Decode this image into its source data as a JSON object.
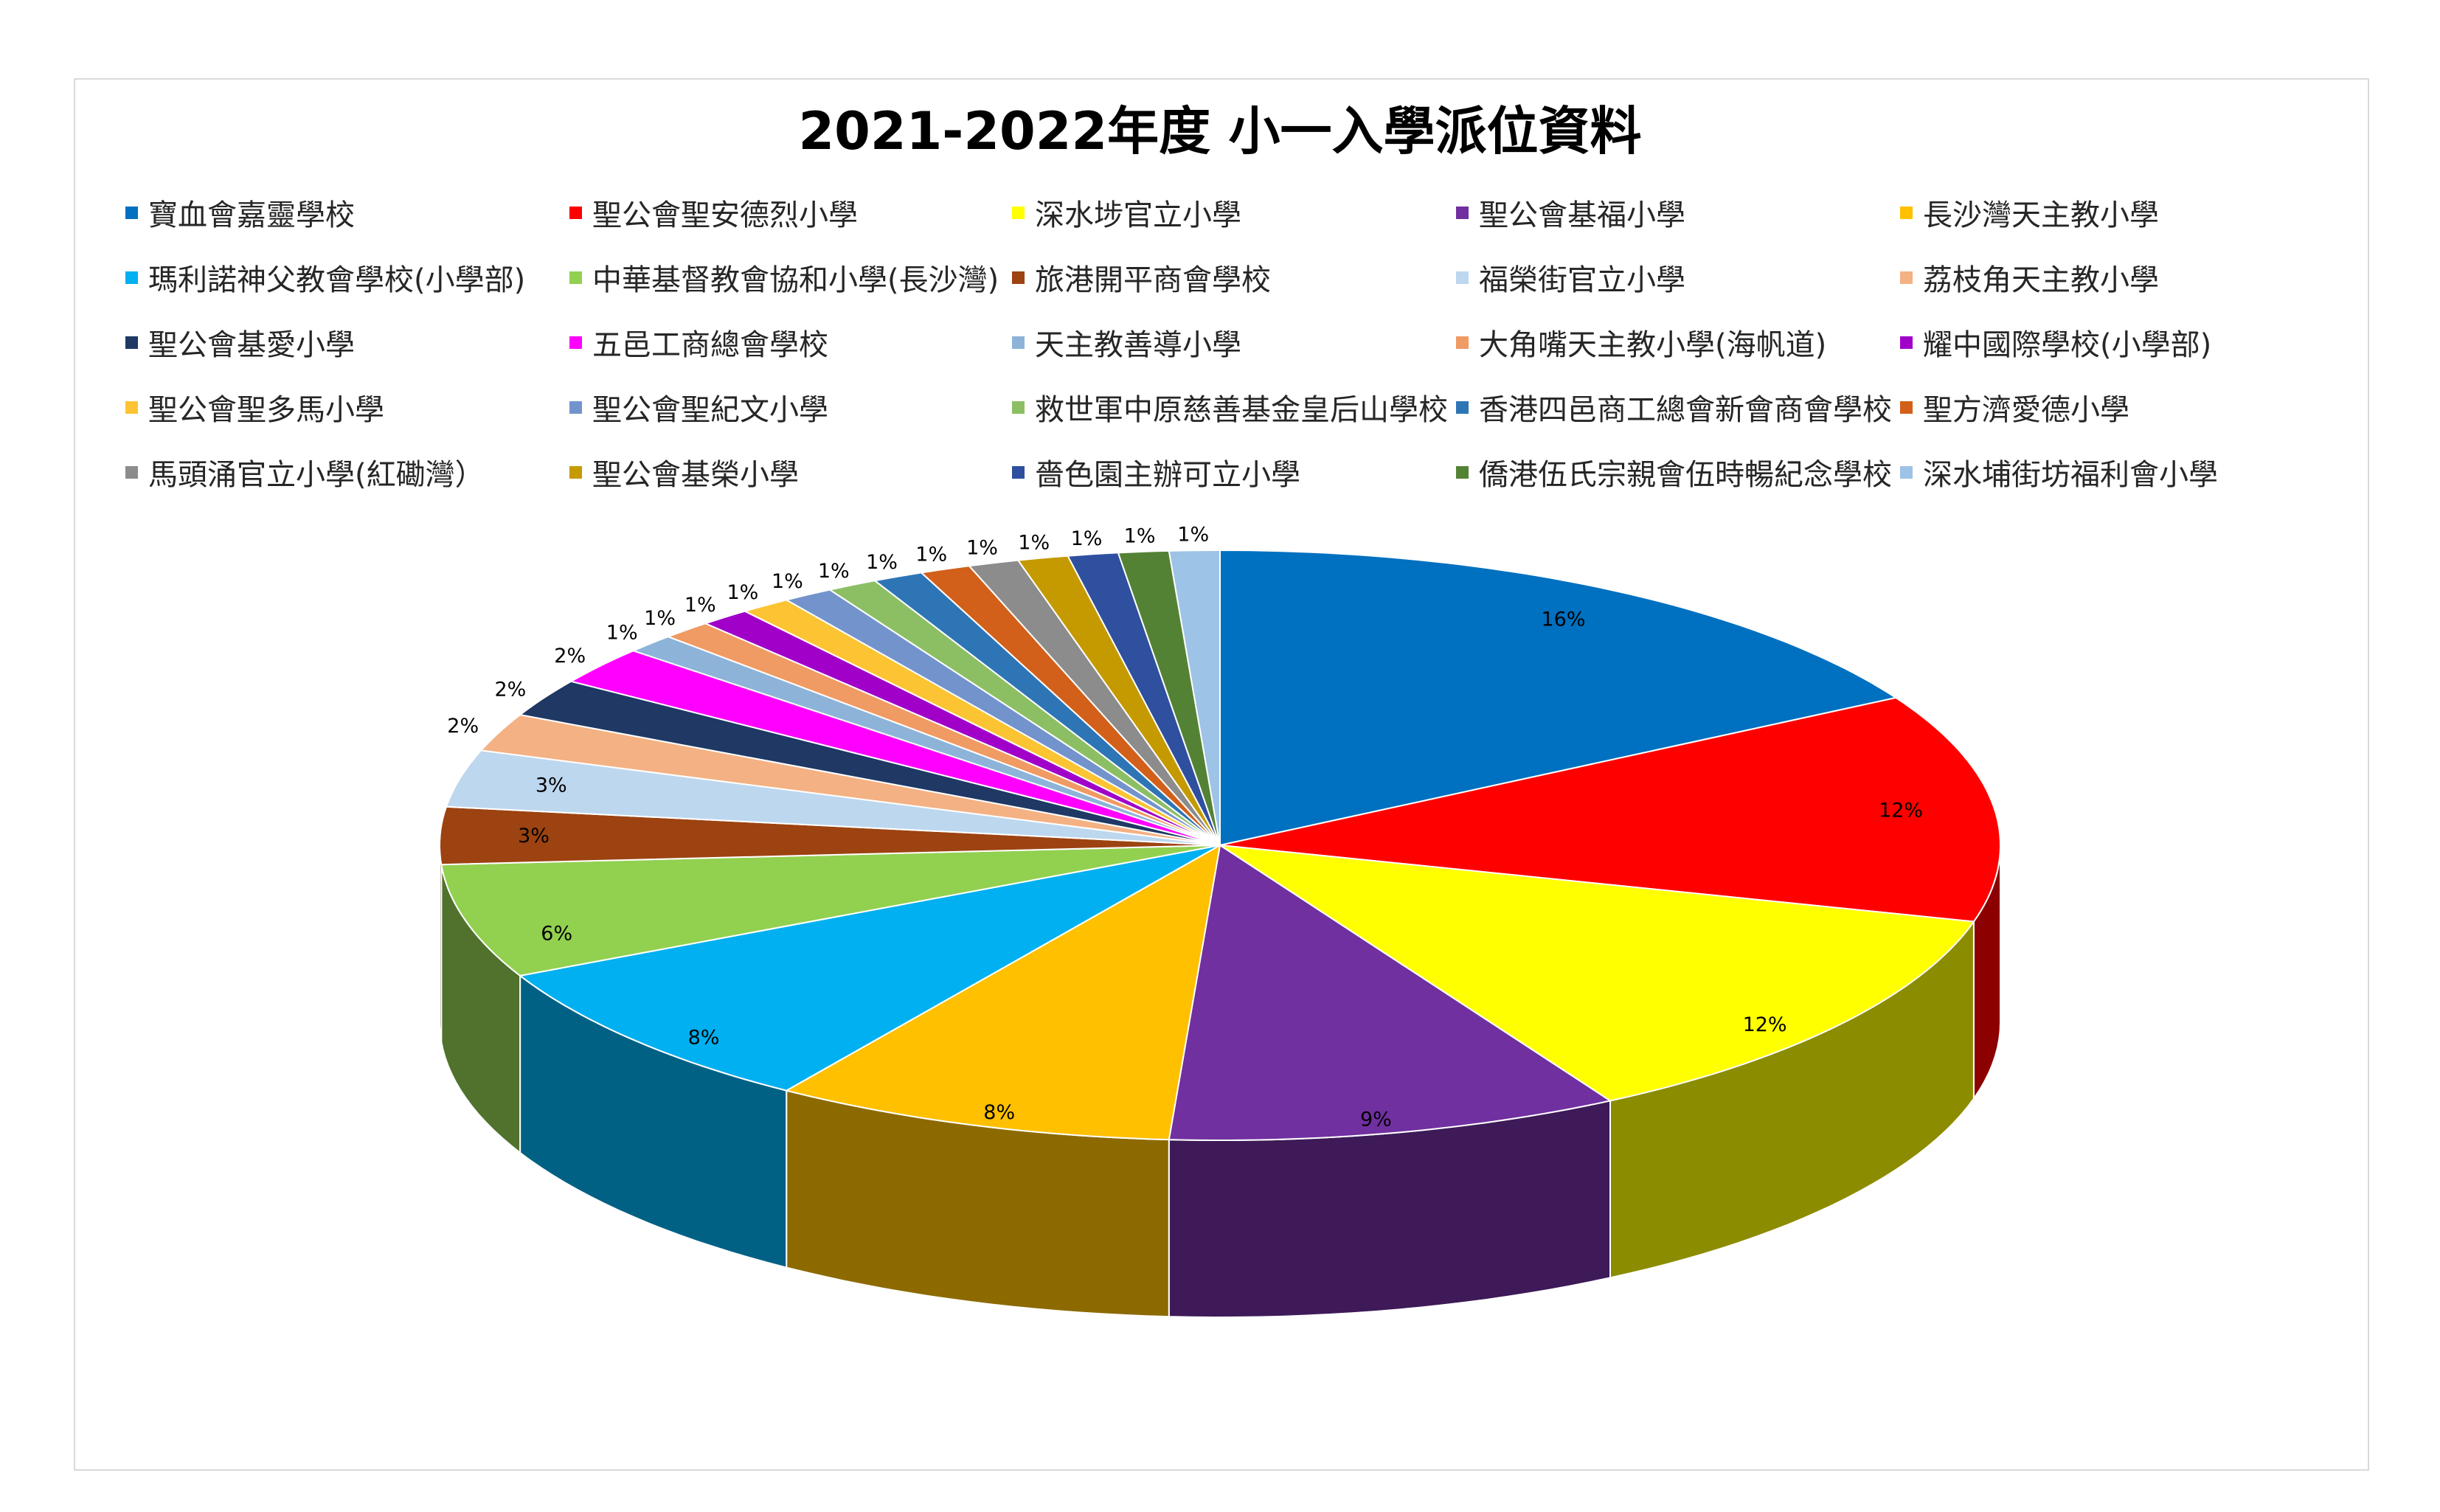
{
  "chart_data": {
    "type": "pie",
    "title": "2021-2022年度 小一入學派位資料",
    "style": "3d",
    "legend_position": "top",
    "slices": [
      {
        "name": "寶血會嘉靈學校",
        "value": 16,
        "label": "16%",
        "color": "#0070c0"
      },
      {
        "name": "聖公會聖安德烈小學",
        "value": 12,
        "label": "12%",
        "color": "#ff0000"
      },
      {
        "name": "深水埗官立小學",
        "value": 12,
        "label": "12%",
        "color": "#ffff00"
      },
      {
        "name": "聖公會基福小學",
        "value": 9,
        "label": "9%",
        "color": "#7030a0"
      },
      {
        "name": "長沙灣天主教小學",
        "value": 8,
        "label": "8%",
        "color": "#ffc000"
      },
      {
        "name": "瑪利諾神父教會學校(小學部)",
        "value": 8,
        "label": "8%",
        "color": "#00b0f0"
      },
      {
        "name": "中華基督教會協和小學(長沙灣)",
        "value": 6,
        "label": "6%",
        "color": "#92d050"
      },
      {
        "name": "旅港開平商會學校",
        "value": 3,
        "label": "3%",
        "color": "#9c4311"
      },
      {
        "name": "福榮街官立小學",
        "value": 3,
        "label": "3%",
        "color": "#bdd7ee"
      },
      {
        "name": "荔枝角天主教小學",
        "value": 2,
        "label": "2%",
        "color": "#f4b183"
      },
      {
        "name": "聖公會基愛小學",
        "value": 2,
        "label": "2%",
        "color": "#1f3864"
      },
      {
        "name": "五邑工商總會學校",
        "value": 2,
        "label": "2%",
        "color": "#ff00ff"
      },
      {
        "name": "天主教善導小學",
        "value": 1,
        "label": "1%",
        "color": "#8db3d9"
      },
      {
        "name": "大角嘴天主教小學(海帆道)",
        "value": 1,
        "label": "1%",
        "color": "#f09a64"
      },
      {
        "name": "耀中國際學校(小學部)",
        "value": 1,
        "label": "1%",
        "color": "#a000c8"
      },
      {
        "name": "聖公會聖多馬小學",
        "value": 1,
        "label": "1%",
        "color": "#fcc433"
      },
      {
        "name": "聖公會聖紀文小學",
        "value": 1,
        "label": "1%",
        "color": "#7393cc"
      },
      {
        "name": "救世軍中原慈善基金皇后山學校",
        "value": 1,
        "label": "1%",
        "color": "#8cbf64"
      },
      {
        "name": "香港四邑商工總會新會商會學校",
        "value": 1,
        "label": "1%",
        "color": "#2e75b6"
      },
      {
        "name": "聖方濟愛德小學",
        "value": 1,
        "label": "1%",
        "color": "#d2601a"
      },
      {
        "name": "馬頭涌官立小學(紅磡灣）",
        "value": 1,
        "label": "1%",
        "color": "#8c8c8c"
      },
      {
        "name": "聖公會基榮小學",
        "value": 1,
        "label": "1%",
        "color": "#c49a00"
      },
      {
        "name": "嗇色園主辦可立小學",
        "value": 1,
        "label": "1%",
        "color": "#2f4f9f"
      },
      {
        "name": "僑港伍氏宗親會伍時暢紀念學校",
        "value": 1,
        "label": "1%",
        "color": "#548235"
      },
      {
        "name": "深水埔街坊福利會小學",
        "value": 1,
        "label": "1%",
        "color": "#9dc3e6"
      }
    ]
  }
}
